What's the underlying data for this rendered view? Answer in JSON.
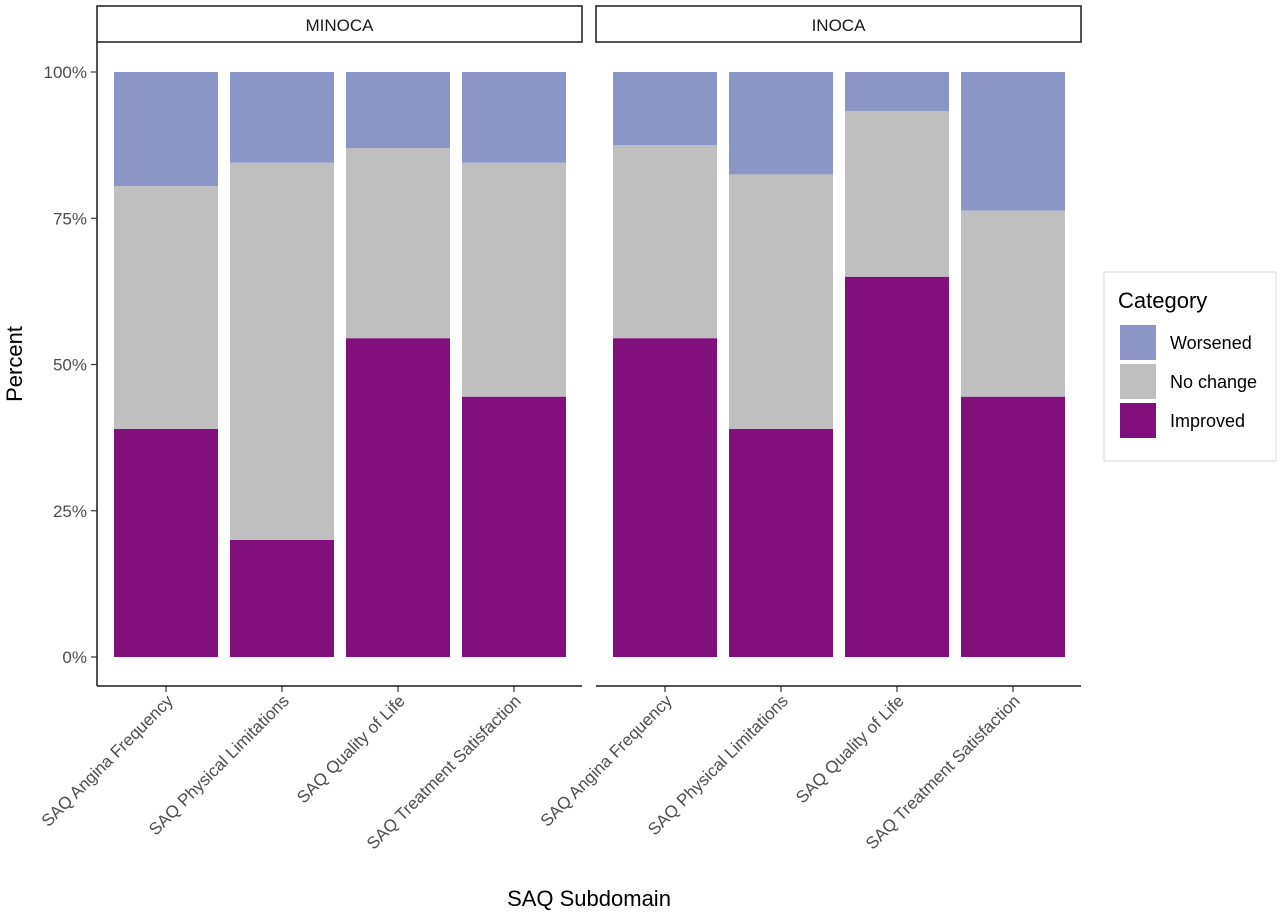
{
  "chart_data": {
    "type": "bar",
    "stacked": true,
    "xlabel": "SAQ Subdomain",
    "ylabel": "Percent",
    "ylim": [
      0,
      100
    ],
    "y_ticks": [
      "0%",
      "25%",
      "50%",
      "75%",
      "100%"
    ],
    "y_tick_values": [
      0,
      25,
      50,
      75,
      100
    ],
    "grid": false,
    "legend": {
      "title": "Category",
      "position": "right",
      "entries": [
        "Worsened",
        "No change",
        "Improved"
      ]
    },
    "categories": [
      "SAQ Angina Frequency",
      "SAQ Physical Limitations",
      "SAQ Quality of Life",
      "SAQ Treatment Satisfaction"
    ],
    "colors": {
      "Improved": "#810f7c",
      "No change": "#bfbfbf",
      "Worsened": "#8c96c6"
    },
    "panels": [
      {
        "name": "MINOCA",
        "series": [
          {
            "name": "Improved",
            "values": [
              39,
              20,
              54.5,
              44.5
            ]
          },
          {
            "name": "No change",
            "values": [
              41.5,
              64.5,
              32.5,
              40
            ]
          },
          {
            "name": "Worsened",
            "values": [
              19.5,
              15.5,
              13,
              15.5
            ]
          }
        ]
      },
      {
        "name": "INOCA",
        "series": [
          {
            "name": "Improved",
            "values": [
              54.5,
              39,
              65,
              44.5
            ]
          },
          {
            "name": "No change",
            "values": [
              33,
              43.5,
              28.3,
              31.8
            ]
          },
          {
            "name": "Worsened",
            "values": [
              12.5,
              17.5,
              6.7,
              23.7
            ]
          }
        ]
      }
    ]
  }
}
